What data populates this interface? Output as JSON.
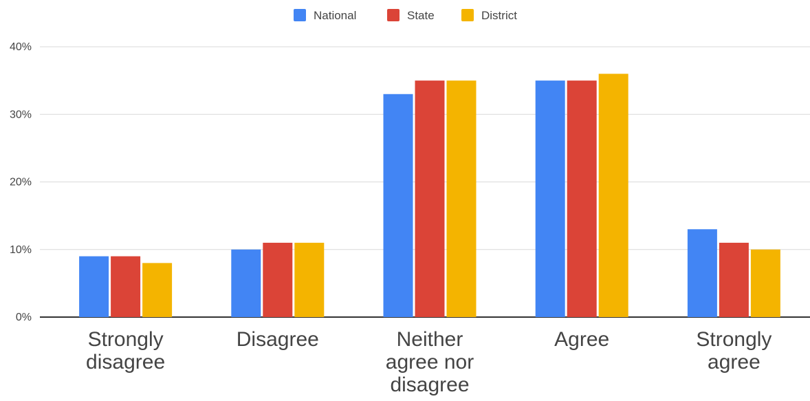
{
  "chart_data": {
    "type": "bar",
    "categories": [
      [
        "Strongly",
        "disagree"
      ],
      [
        "Disagree"
      ],
      [
        "Neither",
        "agree nor",
        "disagree"
      ],
      [
        "Agree"
      ],
      [
        "Strongly",
        "agree"
      ]
    ],
    "series": [
      {
        "name": "National",
        "color": "#4285F4",
        "values": [
          9,
          10,
          33,
          35,
          13
        ]
      },
      {
        "name": "State",
        "color": "#DB4437",
        "values": [
          9,
          11,
          35,
          35,
          11
        ]
      },
      {
        "name": "District",
        "color": "#F4B400",
        "values": [
          8,
          11,
          35,
          36,
          10
        ]
      }
    ],
    "ylim": [
      0,
      40
    ],
    "yticks": [
      0,
      10,
      20,
      30,
      40
    ],
    "ytick_labels": [
      "0%",
      "10%",
      "20%",
      "30%",
      "40%"
    ],
    "grid": true,
    "legend_position": "top-center"
  }
}
